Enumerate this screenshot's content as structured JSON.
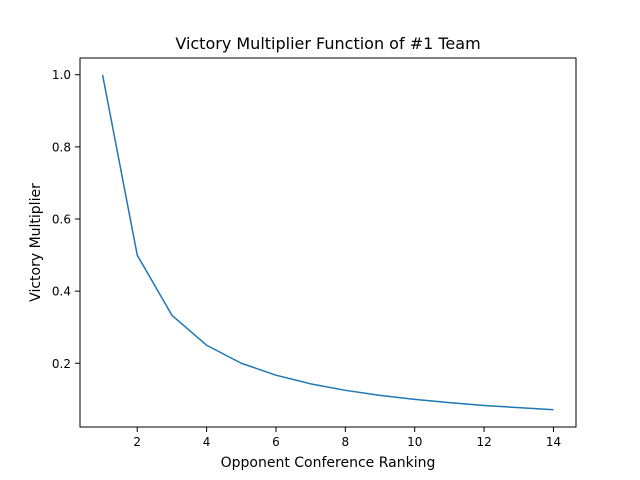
{
  "chart_data": {
    "type": "line",
    "title": "Victory Multiplier Function of #1 Team",
    "xlabel": "Opponent Conference Ranking",
    "ylabel": "Victory Multiplier",
    "xlim": [
      0.35,
      14.65
    ],
    "ylim": [
      0.0233,
      1.0464
    ],
    "xticks": [
      2,
      4,
      6,
      8,
      10,
      12,
      14
    ],
    "xtick_labels": [
      "2",
      "4",
      "6",
      "8",
      "10",
      "12",
      "14"
    ],
    "yticks": [
      0.2,
      0.4,
      0.6,
      0.8,
      1.0
    ],
    "ytick_labels": [
      "0.2",
      "0.4",
      "0.6",
      "0.8",
      "1.0"
    ],
    "grid": false,
    "series": [
      {
        "color": "#1f77b4",
        "x": [
          1,
          2,
          3,
          4,
          5,
          6,
          7,
          8,
          9,
          10,
          11,
          12,
          13,
          14
        ],
        "y": [
          1.0,
          0.5,
          0.333,
          0.25,
          0.2,
          0.167,
          0.143,
          0.125,
          0.111,
          0.1,
          0.091,
          0.083,
          0.077,
          0.071
        ]
      }
    ]
  }
}
